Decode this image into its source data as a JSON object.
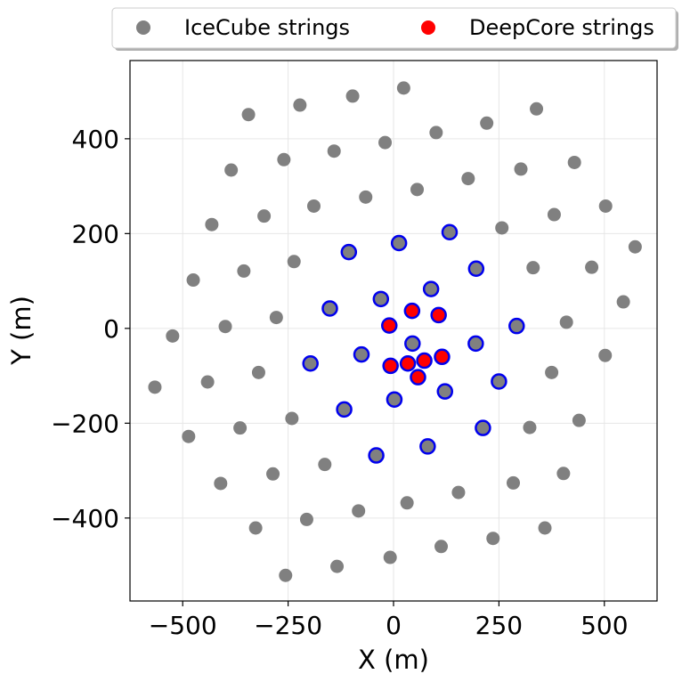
{
  "chart_data": {
    "type": "scatter",
    "xlabel": "X (m)",
    "ylabel": "Y (m)",
    "xlim": [
      -625,
      625
    ],
    "ylim": [
      -575,
      565
    ],
    "xticks": [
      -500,
      -250,
      0,
      250,
      500
    ],
    "xtick_labels": [
      "−500",
      "−250",
      "0",
      "250",
      "500"
    ],
    "yticks": [
      -400,
      -200,
      0,
      200,
      400
    ],
    "ytick_labels": [
      "−400",
      "−200",
      "0",
      "200",
      "400"
    ],
    "grid": true,
    "legend_position": "top (above plot)",
    "colors": {
      "icecube": "#808080",
      "deepcore": "#ff0000",
      "ring": "#0000ee"
    },
    "series": [
      {
        "name": "IceCube strings",
        "points": [
          [
            24,
            507
          ],
          [
            -97,
            490
          ],
          [
            -222,
            471
          ],
          [
            -344,
            451
          ],
          [
            339,
            463
          ],
          [
            221,
            433
          ],
          [
            101,
            413
          ],
          [
            -20,
            392
          ],
          [
            -141,
            374
          ],
          [
            -260,
            356
          ],
          [
            -385,
            334
          ],
          [
            429,
            350
          ],
          [
            302,
            336
          ],
          [
            177,
            316
          ],
          [
            56,
            293
          ],
          [
            -66,
            277
          ],
          [
            -189,
            258
          ],
          [
            -307,
            237
          ],
          [
            -431,
            219
          ],
          [
            503,
            258
          ],
          [
            381,
            240
          ],
          [
            257,
            212
          ],
          [
            -236,
            141
          ],
          [
            -355,
            121
          ],
          [
            -475,
            102
          ],
          [
            573,
            172
          ],
          [
            470,
            129
          ],
          [
            331,
            128
          ],
          [
            545,
            56
          ],
          [
            410,
            13
          ],
          [
            -278,
            23
          ],
          [
            -399,
            4
          ],
          [
            -524,
            -16
          ],
          [
            -566,
            -124
          ],
          [
            -441,
            -113
          ],
          [
            -320,
            -93
          ],
          [
            375,
            -93
          ],
          [
            502,
            -57
          ],
          [
            440,
            -194
          ],
          [
            323,
            -209
          ],
          [
            -241,
            -190
          ],
          [
            -364,
            -210
          ],
          [
            -486,
            -228
          ],
          [
            -410,
            -327
          ],
          [
            -286,
            -307
          ],
          [
            -163,
            -287
          ],
          [
            284,
            -326
          ],
          [
            403,
            -306
          ],
          [
            -327,
            -421
          ],
          [
            -206,
            -403
          ],
          [
            -83,
            -385
          ],
          [
            32,
            -368
          ],
          [
            154,
            -346
          ],
          [
            359,
            -421
          ],
          [
            236,
            -443
          ],
          [
            -256,
            -521
          ],
          [
            -134,
            -502
          ],
          [
            -8,
            -483
          ],
          [
            113,
            -460
          ]
        ]
      },
      {
        "name": "",
        "points": [
          [
            13,
            180
          ],
          [
            -106,
            161
          ],
          [
            133,
            203
          ],
          [
            196,
            126
          ],
          [
            -30,
            62
          ],
          [
            89,
            83
          ],
          [
            -151,
            42
          ],
          [
            292,
            5
          ],
          [
            45,
            -32
          ],
          [
            195,
            -32
          ],
          [
            -197,
            -74
          ],
          [
            -76,
            -55
          ],
          [
            250,
            -112
          ],
          [
            122,
            -133
          ],
          [
            2,
            -150
          ],
          [
            -117,
            -171
          ],
          [
            212,
            -210
          ],
          [
            81,
            -249
          ],
          [
            -41,
            -268
          ]
        ]
      },
      {
        "name": "DeepCore strings",
        "points": [
          [
            -10,
            6
          ],
          [
            44,
            37
          ],
          [
            107,
            28
          ],
          [
            -7,
            -79
          ],
          [
            34,
            -74
          ],
          [
            73,
            -68
          ],
          [
            115,
            -60
          ],
          [
            58,
            -103
          ]
        ]
      }
    ]
  }
}
